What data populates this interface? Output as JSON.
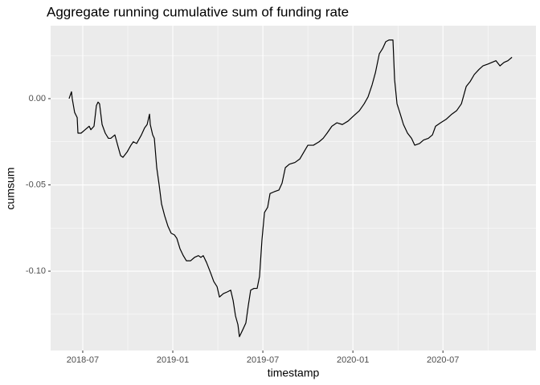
{
  "chart_data": {
    "type": "line",
    "title": "Aggregate running cumulative sum of funding rate",
    "x_label": "timestamp",
    "y_label": "cumsum",
    "color": "#000000",
    "grid": true,
    "xlim": [
      3.86,
      36.2
    ],
    "xticks": [
      {
        "value": 6,
        "label": "2018-07"
      },
      {
        "value": 12,
        "label": "2019-01"
      },
      {
        "value": 18,
        "label": "2019-07"
      },
      {
        "value": 24,
        "label": "2020-01"
      },
      {
        "value": 30,
        "label": "2020-07"
      }
    ],
    "ylim": [
      -0.146,
      0.0423
    ],
    "yticks": [
      {
        "value": -0.1,
        "label": "-0.10"
      },
      {
        "value": -0.05,
        "label": "-0.05"
      },
      {
        "value": 0,
        "label": "0.00"
      }
    ],
    "x": [
      5.09,
      5.25,
      5.3,
      5.46,
      5.63,
      5.68,
      5.89,
      6.16,
      6.43,
      6.54,
      6.75,
      6.91,
      7.02,
      7.12,
      7.29,
      7.5,
      7.71,
      7.87,
      8.14,
      8.36,
      8.52,
      8.68,
      8.95,
      9.21,
      9.37,
      9.59,
      9.91,
      10.12,
      10.29,
      10.45,
      10.5,
      10.66,
      10.77,
      10.93,
      11.09,
      11.25,
      11.46,
      11.68,
      11.89,
      12.11,
      12.27,
      12.48,
      12.7,
      12.91,
      13.18,
      13.45,
      13.71,
      13.87,
      14.03,
      14.25,
      14.52,
      14.73,
      14.95,
      15.11,
      15.37,
      15.64,
      15.86,
      16.02,
      16.18,
      16.34,
      16.44,
      16.66,
      16.87,
      17.03,
      17.19,
      17.41,
      17.62,
      17.78,
      17.94,
      18.11,
      18.32,
      18.48,
      18.75,
      19.07,
      19.28,
      19.5,
      19.77,
      20.14,
      20.46,
      20.73,
      21.0,
      21.37,
      21.75,
      22.02,
      22.28,
      22.6,
      22.93,
      23.3,
      23.68,
      24.05,
      24.43,
      24.75,
      25.01,
      25.28,
      25.5,
      25.76,
      25.98,
      26.19,
      26.4,
      26.67,
      26.78,
      26.94,
      27.16,
      27.37,
      27.64,
      27.91,
      28.12,
      28.44,
      28.71,
      29.03,
      29.3,
      29.51,
      29.84,
      30.21,
      30.59,
      30.91,
      31.23,
      31.39,
      31.55,
      31.82,
      32.09,
      32.41,
      32.67,
      32.99,
      33.26,
      33.53,
      33.8,
      34.07,
      34.33,
      34.6
    ],
    "values": [
      0.0,
      0.004,
      0.0,
      -0.008,
      -0.011,
      -0.02,
      -0.02,
      -0.018,
      -0.016,
      -0.018,
      -0.016,
      -0.004,
      -0.002,
      -0.003,
      -0.015,
      -0.02,
      -0.023,
      -0.023,
      -0.021,
      -0.028,
      -0.033,
      -0.034,
      -0.031,
      -0.027,
      -0.025,
      -0.026,
      -0.021,
      -0.017,
      -0.015,
      -0.009,
      -0.015,
      -0.021,
      -0.023,
      -0.04,
      -0.05,
      -0.061,
      -0.068,
      -0.074,
      -0.078,
      -0.079,
      -0.081,
      -0.087,
      -0.091,
      -0.094,
      -0.094,
      -0.092,
      -0.091,
      -0.092,
      -0.091,
      -0.095,
      -0.101,
      -0.106,
      -0.109,
      -0.115,
      -0.113,
      -0.112,
      -0.111,
      -0.117,
      -0.126,
      -0.131,
      -0.138,
      -0.134,
      -0.13,
      -0.12,
      -0.111,
      -0.11,
      -0.11,
      -0.103,
      -0.082,
      -0.066,
      -0.063,
      -0.055,
      -0.054,
      -0.053,
      -0.049,
      -0.04,
      -0.038,
      -0.037,
      -0.035,
      -0.031,
      -0.027,
      -0.027,
      -0.025,
      -0.023,
      -0.02,
      -0.016,
      -0.014,
      -0.015,
      -0.013,
      -0.01,
      -0.007,
      -0.003,
      0.001,
      0.008,
      0.015,
      0.026,
      0.029,
      0.033,
      0.034,
      0.034,
      0.011,
      -0.003,
      -0.009,
      -0.015,
      -0.02,
      -0.023,
      -0.027,
      -0.026,
      -0.024,
      -0.023,
      -0.021,
      -0.016,
      -0.014,
      -0.012,
      -0.009,
      -0.007,
      -0.003,
      0.002,
      0.007,
      0.01,
      0.014,
      0.017,
      0.019,
      0.02,
      0.021,
      0.022,
      0.019,
      0.021,
      0.022,
      0.024
    ]
  }
}
